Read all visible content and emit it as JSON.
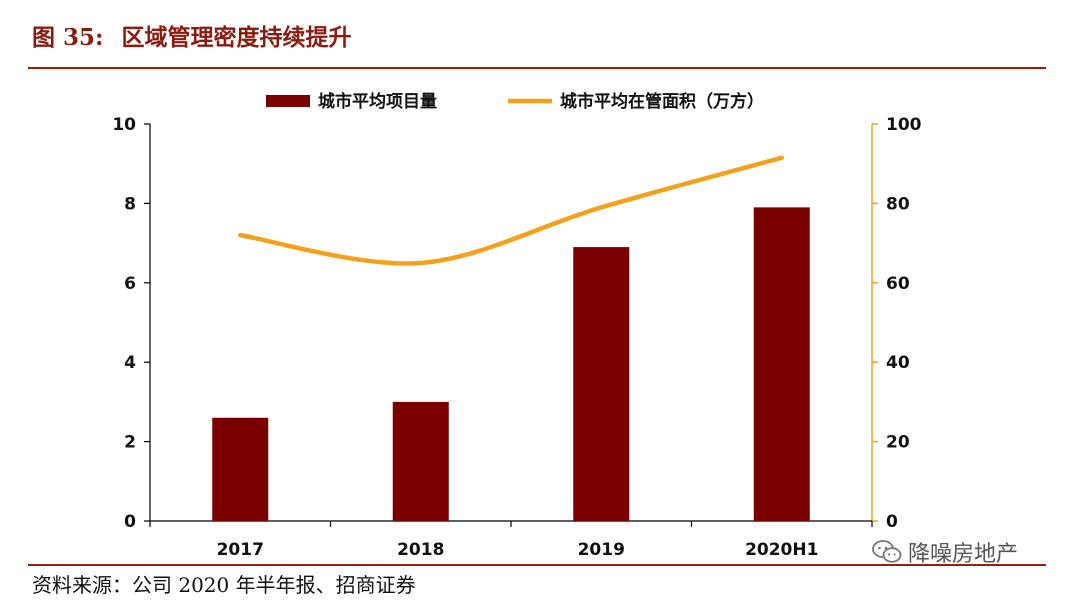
{
  "figure": {
    "number": "图 35:",
    "name": "区域管理密度持续提升"
  },
  "source": "资料来源：公司 2020 年半年报、招商证券",
  "watermark": {
    "text": "降噪房地产",
    "icon": "wechat-icon"
  },
  "colors": {
    "bar": "#7a0000",
    "line": "#f5a01a",
    "accent": "#9b1c0e"
  },
  "chart_data": {
    "type": "bar+line",
    "categories": [
      "2017",
      "2018",
      "2019",
      "2020H1"
    ],
    "series": [
      {
        "name": "城市平均项目量",
        "type": "bar",
        "axis": "left",
        "values": [
          2.6,
          3.0,
          6.9,
          7.9
        ]
      },
      {
        "name": "城市平均在管面积（万方）",
        "type": "line",
        "axis": "right",
        "values": [
          72,
          65,
          79,
          91.5
        ]
      }
    ],
    "y_left": {
      "min": 0,
      "max": 10,
      "ticks": [
        "0",
        "2",
        "4",
        "6",
        "8",
        "10"
      ]
    },
    "y_right": {
      "min": 0,
      "max": 100,
      "ticks": [
        "0",
        "20",
        "40",
        "60",
        "80",
        "100"
      ]
    },
    "legend_position": "top",
    "grid": false
  }
}
